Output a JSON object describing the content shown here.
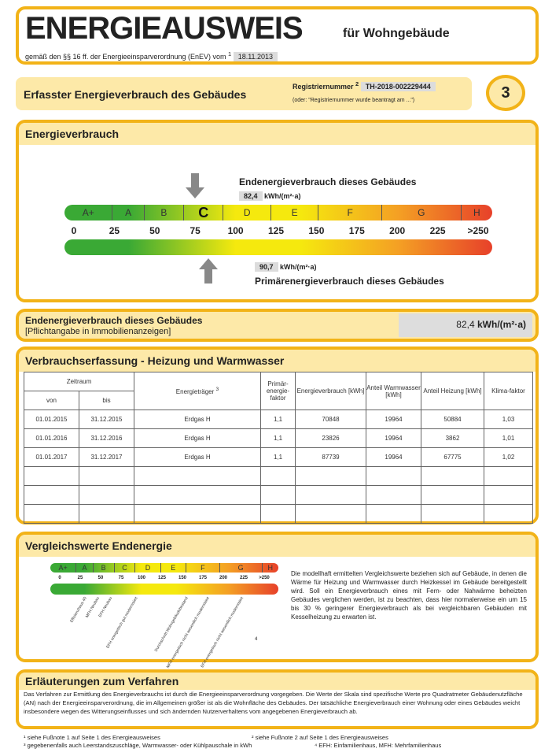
{
  "header": {
    "title": "ENERGIEAUSWEIS",
    "subtitle": "für Wohngebäude",
    "legal": "gemäß den §§ 16 ff. der Energieeinsparverordnung (EnEV) vom",
    "legal_sup": "1",
    "date": "18.11.2013"
  },
  "section": {
    "title": "Erfasster Energieverbrauch des Gebäudes",
    "reg_label": "Registriernummer",
    "reg_sup": "2",
    "reg_value": "TH-2018-002229444",
    "reg_note": "(oder: \"Registriernummer wurde beantragt am ...\")",
    "page_number": "3"
  },
  "energieverbrauch": {
    "title": "Energieverbrauch",
    "end_label": "Endenergieverbrauch dieses Gebäudes",
    "end_value": "82,4",
    "end_num": 82.4,
    "unit": "kWh/(m²·a)",
    "primary_value": "90,7",
    "primary_num": 90.7,
    "primary_label": "Primärenergieverbrauch dieses Gebäudes",
    "classes": [
      {
        "label": "A+",
        "from": 0,
        "to": 30
      },
      {
        "label": "A",
        "from": 30,
        "to": 50
      },
      {
        "label": "B",
        "from": 50,
        "to": 75
      },
      {
        "label": "C",
        "from": 75,
        "to": 100,
        "active": true
      },
      {
        "label": "D",
        "from": 100,
        "to": 130
      },
      {
        "label": "E",
        "from": 130,
        "to": 160
      },
      {
        "label": "F",
        "from": 160,
        "to": 200
      },
      {
        "label": "G",
        "from": 200,
        "to": 250
      },
      {
        "label": "H",
        "from": 250,
        "to": 270
      }
    ],
    "ticks": [
      "0",
      "25",
      "50",
      "75",
      "100",
      "125",
      "150",
      "175",
      "200",
      "225",
      ">250"
    ],
    "colors": {
      "green": "#3aa935",
      "yellow": "#f5e90e",
      "red": "#e7412a"
    }
  },
  "pflicht": {
    "title": "Endenergieverbrauch dieses Gebäudes",
    "note": "[Pflichtangabe in Immobilienanzeigen]",
    "value": "82,4",
    "unit": "kWh/(m²·a)"
  },
  "erfassung": {
    "title": "Verbrauchserfassung - Heizung und Warmwasser",
    "headers": {
      "zeitraum": "Zeitraum",
      "von": "von",
      "bis": "bis",
      "traeger": "Energieträger",
      "traeger_sup": "3",
      "pef": "Primär-energie-faktor",
      "verbrauch": "Energieverbrauch [kWh]",
      "ww": "Anteil Warmwasser [kWh]",
      "heiz": "Anteil Heizung [kWh]",
      "klima": "Klima-faktor"
    },
    "rows": [
      [
        "01.01.2015",
        "31.12.2015",
        "Erdgas H",
        "1,1",
        "70848",
        "19964",
        "50884",
        "1,03"
      ],
      [
        "01.01.2016",
        "31.12.2016",
        "Erdgas H",
        "1,1",
        "23826",
        "19964",
        "3862",
        "1,01"
      ],
      [
        "01.01.2017",
        "31.12.2017",
        "Erdgas H",
        "1,1",
        "87739",
        "19964",
        "67775",
        "1,02"
      ]
    ],
    "empty_rows": 3
  },
  "vergleich": {
    "title": "Vergleichswerte Endenergie",
    "ticks": [
      "0",
      "25",
      "50",
      "75",
      "100",
      "125",
      "150",
      "175",
      "200",
      "225",
      ">250"
    ],
    "refs": [
      {
        "label": "Effizienzhaus 40",
        "value": 40
      },
      {
        "label": "MFH Neubau",
        "value": 55
      },
      {
        "label": "EFH Neubau",
        "value": 70
      },
      {
        "label": "EFH energetisch gut modernisiert",
        "value": 100
      },
      {
        "label": "Durchschnitt Wohngebäudebestand",
        "value": 160
      },
      {
        "label": "MFH energetisch nicht wesentlich modernisiert",
        "value": 185
      },
      {
        "label": "EFH energetisch nicht wesentlich modernisiert",
        "value": 225
      }
    ],
    "footnote_mark": "4",
    "text": "Die modellhaft ermittelten Vergleichswerte beziehen sich auf Gebäude, in denen die Wärme für Heizung und Warmwasser durch Heizkessel im Gebäude bereitgestellt wird. Soll ein Energieverbrauch eines mit Fern- oder Nahwärme beheizten Gebäudes verglichen werden, ist zu beachten, dass hier normalerweise ein um 15 bis 30 % geringerer Energieverbrauch als bei vergleichbaren Gebäuden mit Kesselheizung zu erwarten ist."
  },
  "erlaeuterung": {
    "title": "Erläuterungen zum Verfahren",
    "text": "Das Verfahren zur Ermittlung des Energieverbrauchs ist durch die Energieeinsparverordnung vorgegeben. Die Werte der Skala sind spezifische Werte pro Quadratmeter Gebäudenutzfläche (AN) nach der Energieeinsparverordnung, die im Allgemeinen größer ist als die Wohnfläche des Gebäudes. Der tatsächliche Energieverbrauch einer Wohnung oder eines Gebäudes weicht insbesondere wegen des Witterungseinflusses und sich ändernden Nutzerverhaltens vom angegebenen Energieverbrauch ab."
  },
  "footnotes": {
    "f1": "¹ siehe Fußnote 1 auf Seite 1 des Energieausweises",
    "f2": "² siehe Fußnote 2 auf Seite 1 des Energieausweises",
    "f3": "³ gegebenenfalls auch Leerstandszuschläge, Warmwasser- oder Kühlpauschale in kWh",
    "f4": "⁴ EFH: Einfamilienhaus, MFH: Mehrfamilienhaus"
  }
}
